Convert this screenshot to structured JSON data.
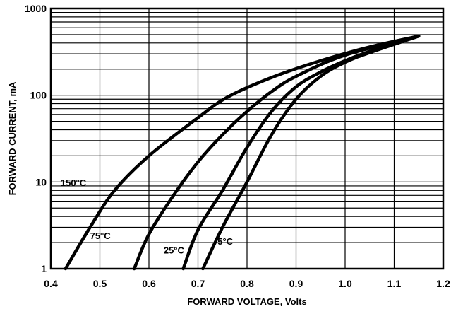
{
  "chart_data": {
    "type": "line",
    "title": "",
    "xlabel": "FORWARD  VOLTAGE, Volts",
    "ylabel": "FORWARD CURRENT, mA",
    "xlim": [
      0.4,
      1.2
    ],
    "ylim": [
      1,
      1000
    ],
    "yscale": "log",
    "grid": true,
    "x_ticks": [
      "0.4",
      "0.5",
      "0.6",
      "0.7",
      "0.8",
      "0.9",
      "1.0",
      "1.1",
      "1.2"
    ],
    "y_ticks": [
      "1",
      "10",
      "100",
      "1000"
    ],
    "series": [
      {
        "name": "150°C",
        "points": [
          [
            0.43,
            1
          ],
          [
            0.48,
            3
          ],
          [
            0.53,
            8
          ],
          [
            0.6,
            20
          ],
          [
            0.7,
            55
          ],
          [
            0.76,
            95
          ],
          [
            0.85,
            160
          ],
          [
            0.95,
            250
          ],
          [
            1.05,
            360
          ],
          [
            1.15,
            480
          ]
        ]
      },
      {
        "name": "75°C",
        "points": [
          [
            0.57,
            1
          ],
          [
            0.6,
            2.5
          ],
          [
            0.65,
            7
          ],
          [
            0.7,
            17
          ],
          [
            0.75,
            35
          ],
          [
            0.8,
            65
          ],
          [
            0.85,
            110
          ],
          [
            0.9,
            165
          ],
          [
            1.0,
            290
          ],
          [
            1.15,
            480
          ]
        ]
      },
      {
        "name": "25°C",
        "points": [
          [
            0.67,
            1
          ],
          [
            0.7,
            2.8
          ],
          [
            0.75,
            8
          ],
          [
            0.8,
            25
          ],
          [
            0.85,
            65
          ],
          [
            0.9,
            125
          ],
          [
            0.95,
            185
          ],
          [
            1.0,
            250
          ],
          [
            1.05,
            320
          ],
          [
            1.15,
            480
          ]
        ]
      },
      {
        "name": "5°C",
        "points": [
          [
            0.71,
            1
          ],
          [
            0.75,
            3
          ],
          [
            0.8,
            10
          ],
          [
            0.85,
            35
          ],
          [
            0.9,
            90
          ],
          [
            0.95,
            165
          ],
          [
            1.0,
            240
          ],
          [
            1.05,
            310
          ],
          [
            1.15,
            480
          ]
        ]
      }
    ]
  }
}
